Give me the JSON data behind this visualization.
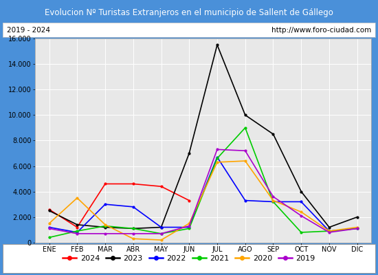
{
  "title": "Evolucion Nº Turistas Extranjeros en el municipio de Sallent de Gállego",
  "subtitle_left": "2019 - 2024",
  "subtitle_right": "http://www.foro-ciudad.com",
  "title_bg_color": "#4a90d9",
  "title_text_color": "#ffffff",
  "subtitle_bg_color": "#ffffff",
  "subtitle_text_color": "#000000",
  "plot_bg_color": "#e8e8e8",
  "months": [
    "ENE",
    "FEB",
    "MAR",
    "ABR",
    "MAY",
    "JUN",
    "JUL",
    "AGO",
    "SEP",
    "OCT",
    "NOV",
    "DIC"
  ],
  "ylim": [
    0,
    16000
  ],
  "yticks": [
    0,
    2000,
    4000,
    6000,
    8000,
    10000,
    12000,
    14000,
    16000
  ],
  "series": {
    "2024": {
      "color": "#ff0000",
      "values": [
        2600,
        1200,
        4600,
        4600,
        4400,
        3300,
        null,
        null,
        null,
        null,
        null,
        null
      ]
    },
    "2023": {
      "color": "#000000",
      "values": [
        2500,
        1400,
        1200,
        1100,
        1200,
        7000,
        15500,
        10000,
        8500,
        4000,
        1200,
        2000
      ]
    },
    "2022": {
      "color": "#0000ff",
      "values": [
        1200,
        800,
        3000,
        2800,
        1200,
        1200,
        6700,
        3300,
        3200,
        3200,
        900,
        1100
      ]
    },
    "2021": {
      "color": "#00cc00",
      "values": [
        400,
        900,
        1300,
        1100,
        700,
        1100,
        6600,
        9000,
        3200,
        800,
        900,
        1100
      ]
    },
    "2020": {
      "color": "#ffa500",
      "values": [
        1500,
        3500,
        1400,
        300,
        200,
        1500,
        6300,
        6400,
        3300,
        2400,
        900,
        1200
      ]
    },
    "2019": {
      "color": "#aa00cc",
      "values": [
        1100,
        700,
        700,
        700,
        700,
        1300,
        7300,
        7200,
        3600,
        2100,
        800,
        1100
      ]
    }
  },
  "legend_order": [
    "2024",
    "2023",
    "2022",
    "2021",
    "2020",
    "2019"
  ],
  "grid_color": "#ffffff",
  "outer_border_color": "#4a90d9"
}
